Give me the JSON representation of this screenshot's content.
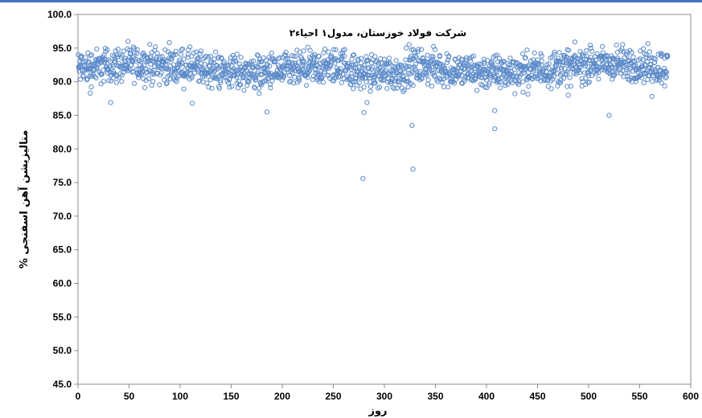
{
  "accent_color": "#4472c4",
  "chart_data": {
    "type": "scatter",
    "title": "شرکت فولاد خوزستان، مدول۱ احیاء۲",
    "xlabel": "روز",
    "ylabel": "متالیزیشن آهن اسفنجی %",
    "xlim": [
      0,
      600
    ],
    "ylim": [
      45,
      100
    ],
    "x_ticks": [
      "0",
      "50",
      "100",
      "150",
      "200",
      "250",
      "300",
      "350",
      "400",
      "450",
      "500",
      "550",
      "600"
    ],
    "y_ticks": [
      "45.0",
      "50.0",
      "55.0",
      "60.0",
      "65.0",
      "70.0",
      "75.0",
      "80.0",
      "85.0",
      "90.0",
      "95.0",
      "100.0"
    ],
    "grid": false,
    "legend": "none",
    "marker": "open-circle",
    "marker_color": "#5b8ac9",
    "main_band": {
      "x_range": [
        0,
        577
      ],
      "y_min": 88,
      "y_max": 96,
      "typical_center": 92
    },
    "outliers": [
      {
        "x": 12,
        "y": 88.3
      },
      {
        "x": 32,
        "y": 86.9
      },
      {
        "x": 112,
        "y": 86.8
      },
      {
        "x": 185,
        "y": 85.5
      },
      {
        "x": 279,
        "y": 75.6
      },
      {
        "x": 280,
        "y": 85.4
      },
      {
        "x": 283,
        "y": 86.9
      },
      {
        "x": 327,
        "y": 83.5
      },
      {
        "x": 328,
        "y": 77.0
      },
      {
        "x": 408,
        "y": 85.7
      },
      {
        "x": 408,
        "y": 83.0
      },
      {
        "x": 480,
        "y": 88.0
      },
      {
        "x": 520,
        "y": 85.0
      },
      {
        "x": 562,
        "y": 87.8
      }
    ]
  }
}
